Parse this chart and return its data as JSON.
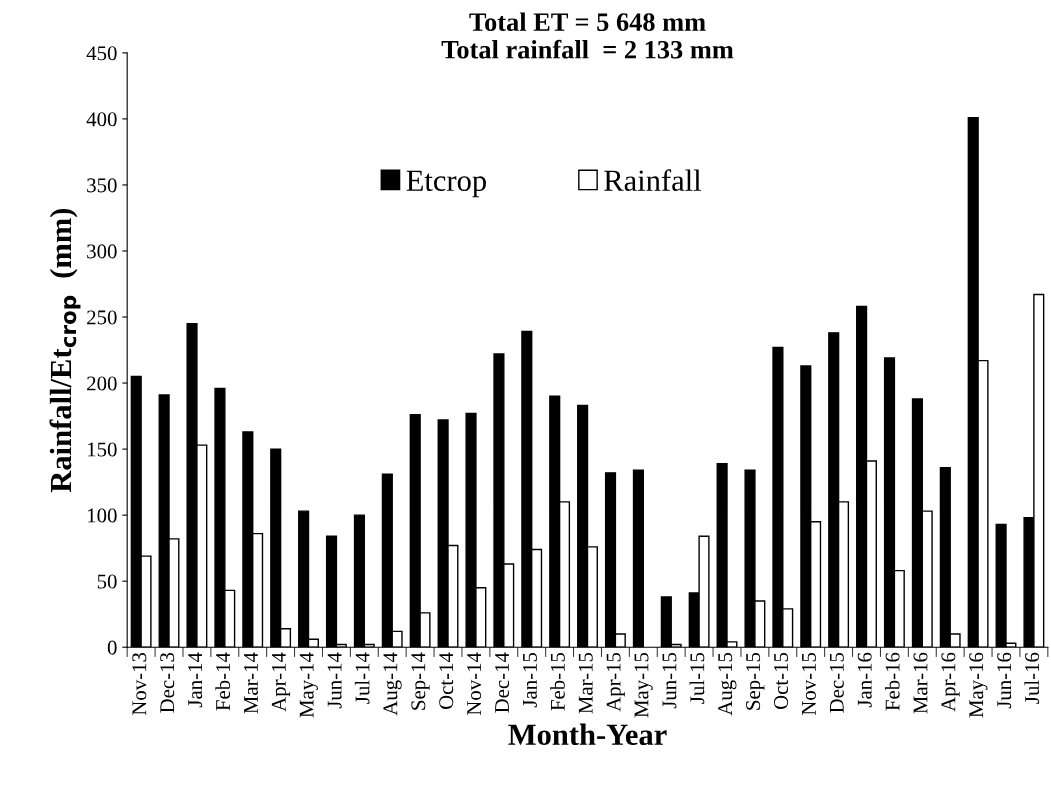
{
  "chart_data": {
    "type": "bar",
    "title": "Total ET = 5 648 mm\nTotal rainfall  = 2 133 mm",
    "xlabel": "Month-Year",
    "ylabel": "Rainfall/Et$_{crop}$  (mm)",
    "categories": [
      "Nov-13",
      "Dec-13",
      "Jan-14",
      "Feb-14",
      "Mar-14",
      "Apr-14",
      "May-14",
      "Jun-14",
      "Jul-14",
      "Aug-14",
      "Sep-14",
      "Oct-14",
      "Nov-14",
      "Dec-14",
      "Jan-15",
      "Feb-15",
      "Mar-15",
      "Apr-15",
      "May-15",
      "Jun-15",
      "Jul-15",
      "Aug-15",
      "Sep-15",
      "Oct-15",
      "Nov-15",
      "Dec-15",
      "Jan-16",
      "Feb-16",
      "Mar-16",
      "Apr-16",
      "May-16",
      "Jun-16",
      "Jul-16"
    ],
    "series": [
      {
        "name": "Etcrop",
        "color": "#000000",
        "values": [
          205,
          191,
          245,
          196,
          163,
          150,
          103,
          84,
          100,
          131,
          176,
          172,
          177,
          222,
          239,
          190,
          183,
          132,
          134,
          38,
          41,
          139,
          134,
          227,
          213,
          238,
          258,
          219,
          188,
          136,
          401,
          93,
          98
        ]
      },
      {
        "name": "Rainfall",
        "color": "#ffffff",
        "values": [
          69,
          82,
          153,
          43,
          86,
          14,
          6,
          2,
          2,
          12,
          26,
          77,
          45,
          63,
          74,
          110,
          76,
          10,
          0,
          2,
          84,
          4,
          35,
          29,
          95,
          110,
          141,
          58,
          103,
          10,
          217,
          3,
          267
        ]
      }
    ],
    "ylim": [
      0,
      450
    ],
    "yticks": [
      0,
      50,
      100,
      150,
      200,
      250,
      300,
      350,
      400,
      450
    ],
    "grid": false,
    "legend": "top"
  }
}
